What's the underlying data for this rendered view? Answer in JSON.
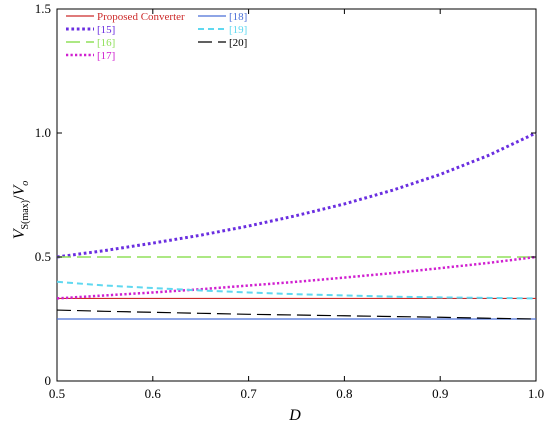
{
  "chart_data": {
    "type": "line",
    "xlabel": "D",
    "ylabel": {
      "main": "V",
      "sub": "S(max)",
      "slash": "/",
      "denom": "V",
      "denom_sub": "o"
    },
    "xlim": [
      0.5,
      1.0
    ],
    "ylim": [
      0,
      1.5
    ],
    "xticks": [
      0.5,
      0.6,
      0.7,
      0.8,
      0.9,
      1.0
    ],
    "xtick_labels": [
      "0.5",
      "0.6",
      "0.7",
      "0.8",
      "0.9",
      "1.0"
    ],
    "yticks": [
      0,
      0.5,
      1.0,
      1.5
    ],
    "ytick_labels": [
      "0",
      "0.5",
      "1.0",
      "1.5"
    ],
    "grid": false,
    "legend_position": "top-left",
    "x": [
      0.5,
      0.55,
      0.6,
      0.65,
      0.7,
      0.75,
      0.8,
      0.85,
      0.9,
      0.95,
      1.0
    ],
    "series": [
      {
        "name": "Proposed Converter",
        "color": "#cc2a2a",
        "dash": "solid",
        "width": 1.2,
        "values": [
          0.333,
          0.333,
          0.333,
          0.333,
          0.333,
          0.333,
          0.333,
          0.333,
          0.333,
          0.333,
          0.333
        ]
      },
      {
        "name": "[15]",
        "color": "#6a2ee0",
        "dash": "dot",
        "width": 3,
        "values": [
          0.5,
          0.526,
          0.556,
          0.588,
          0.625,
          0.667,
          0.714,
          0.769,
          0.833,
          0.909,
          1.0
        ]
      },
      {
        "name": "[16]",
        "color": "#90e05a",
        "dash": "longdash",
        "width": 1.5,
        "values": [
          0.5,
          0.5,
          0.5,
          0.5,
          0.5,
          0.5,
          0.5,
          0.5,
          0.5,
          0.5,
          0.5
        ]
      },
      {
        "name": "[17]",
        "color": "#d020d0",
        "dash": "dot",
        "width": 2.5,
        "values": [
          0.333,
          0.345,
          0.357,
          0.37,
          0.385,
          0.4,
          0.417,
          0.435,
          0.455,
          0.476,
          0.5
        ]
      },
      {
        "name": "[18]",
        "color": "#4a6fd8",
        "dash": "solid",
        "width": 1.2,
        "values": [
          0.25,
          0.25,
          0.25,
          0.25,
          0.25,
          0.25,
          0.25,
          0.25,
          0.25,
          0.25,
          0.25
        ]
      },
      {
        "name": "[19]",
        "color": "#5fd8f0",
        "dash": "dash",
        "width": 2,
        "values": [
          0.4,
          0.385,
          0.375,
          0.365,
          0.357,
          0.35,
          0.345,
          0.34,
          0.337,
          0.335,
          0.333
        ]
      },
      {
        "name": "[20]",
        "color": "#000000",
        "dash": "longdash",
        "width": 1.2,
        "values": [
          0.286,
          0.281,
          0.277,
          0.273,
          0.269,
          0.266,
          0.263,
          0.26,
          0.257,
          0.253,
          0.25
        ]
      }
    ]
  }
}
